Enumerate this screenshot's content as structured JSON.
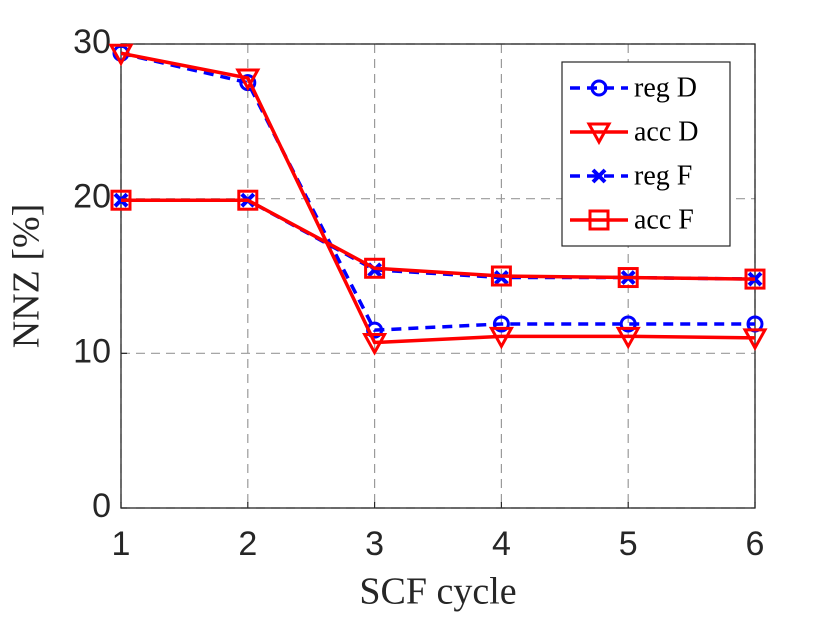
{
  "chart_data": {
    "type": "line",
    "x_label": "SCF cycle",
    "y_label": "NNZ [%]",
    "x": [
      1,
      2,
      3,
      4,
      5,
      6
    ],
    "xlim": [
      1,
      6
    ],
    "xticks": [
      1,
      2,
      3,
      4,
      5,
      6
    ],
    "ylim": [
      0,
      30
    ],
    "yticks": [
      0,
      10,
      20,
      30
    ],
    "grid": true,
    "legend": "top-right",
    "series": [
      {
        "name": "reg D",
        "color": "#0000ff",
        "dashed": true,
        "marker": "circle",
        "values": [
          29.4,
          27.5,
          11.5,
          11.9,
          11.9,
          11.9
        ]
      },
      {
        "name": "acc D",
        "color": "#ff0000",
        "dashed": false,
        "marker": "triangle-down",
        "values": [
          29.4,
          27.8,
          10.7,
          11.1,
          11.1,
          11.0
        ]
      },
      {
        "name": "reg F",
        "color": "#0000ff",
        "dashed": true,
        "marker": "x",
        "values": [
          19.9,
          19.9,
          15.4,
          14.9,
          14.9,
          14.8
        ]
      },
      {
        "name": "acc F",
        "color": "#ff0000",
        "dashed": false,
        "marker": "square",
        "values": [
          19.9,
          19.9,
          15.5,
          15.0,
          14.9,
          14.8
        ]
      }
    ]
  }
}
